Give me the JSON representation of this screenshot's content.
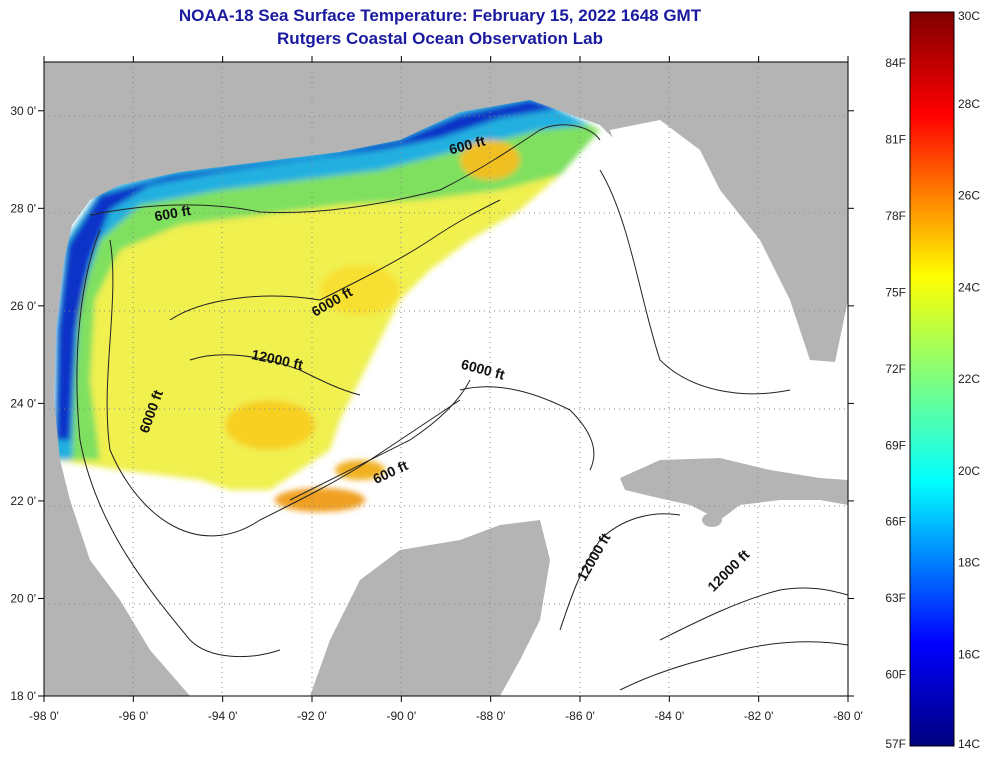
{
  "title": "NOAA-18 Sea Surface Temperature:  February 15, 2022 1648 GMT",
  "subtitle": "Rutgers Coastal Ocean Observation Lab",
  "map": {
    "lon_range": [
      -98,
      -80
    ],
    "lat_range": [
      18,
      31
    ],
    "x_ticks": [
      "-98 0'",
      "-96 0'",
      "-94 0'",
      "-92 0'",
      "-90 0'",
      "-88 0'",
      "-86 0'",
      "-84 0'",
      "-82 0'",
      "-80 0'"
    ],
    "y_ticks": [
      "30 0'",
      "28 0'",
      "26 0'",
      "24 0'",
      "22 0'",
      "20 0'",
      "18 0'"
    ],
    "land_color": "#b4b4b4",
    "nodata_color": "#ffffff",
    "grid": "dotted"
  },
  "contour_labels": [
    {
      "text": "600 ft",
      "lon": -88.5,
      "lat": 29.2
    },
    {
      "text": "600 ft",
      "lon": -95.1,
      "lat": 27.8
    },
    {
      "text": "6000 ft",
      "lon": -91.5,
      "lat": 26.0
    },
    {
      "text": "12000 ft",
      "lon": -92.8,
      "lat": 24.8
    },
    {
      "text": "6000 ft",
      "lon": -95.5,
      "lat": 23.8
    },
    {
      "text": "6000 ft",
      "lon": -88.2,
      "lat": 24.6
    },
    {
      "text": "600 ft",
      "lon": -90.2,
      "lat": 22.5
    },
    {
      "text": "12000 ft",
      "lon": -85.6,
      "lat": 20.8
    },
    {
      "text": "12000 ft",
      "lon": -82.6,
      "lat": 20.5
    }
  ],
  "colorbar": {
    "range_c": [
      14,
      30
    ],
    "f_labels": [
      "84F",
      "81F",
      "78F",
      "75F",
      "72F",
      "69F",
      "66F",
      "63F",
      "60F",
      "57F"
    ],
    "c_labels": [
      "30C",
      "28C",
      "26C",
      "24C",
      "22C",
      "20C",
      "18C",
      "16C",
      "14C"
    ]
  }
}
